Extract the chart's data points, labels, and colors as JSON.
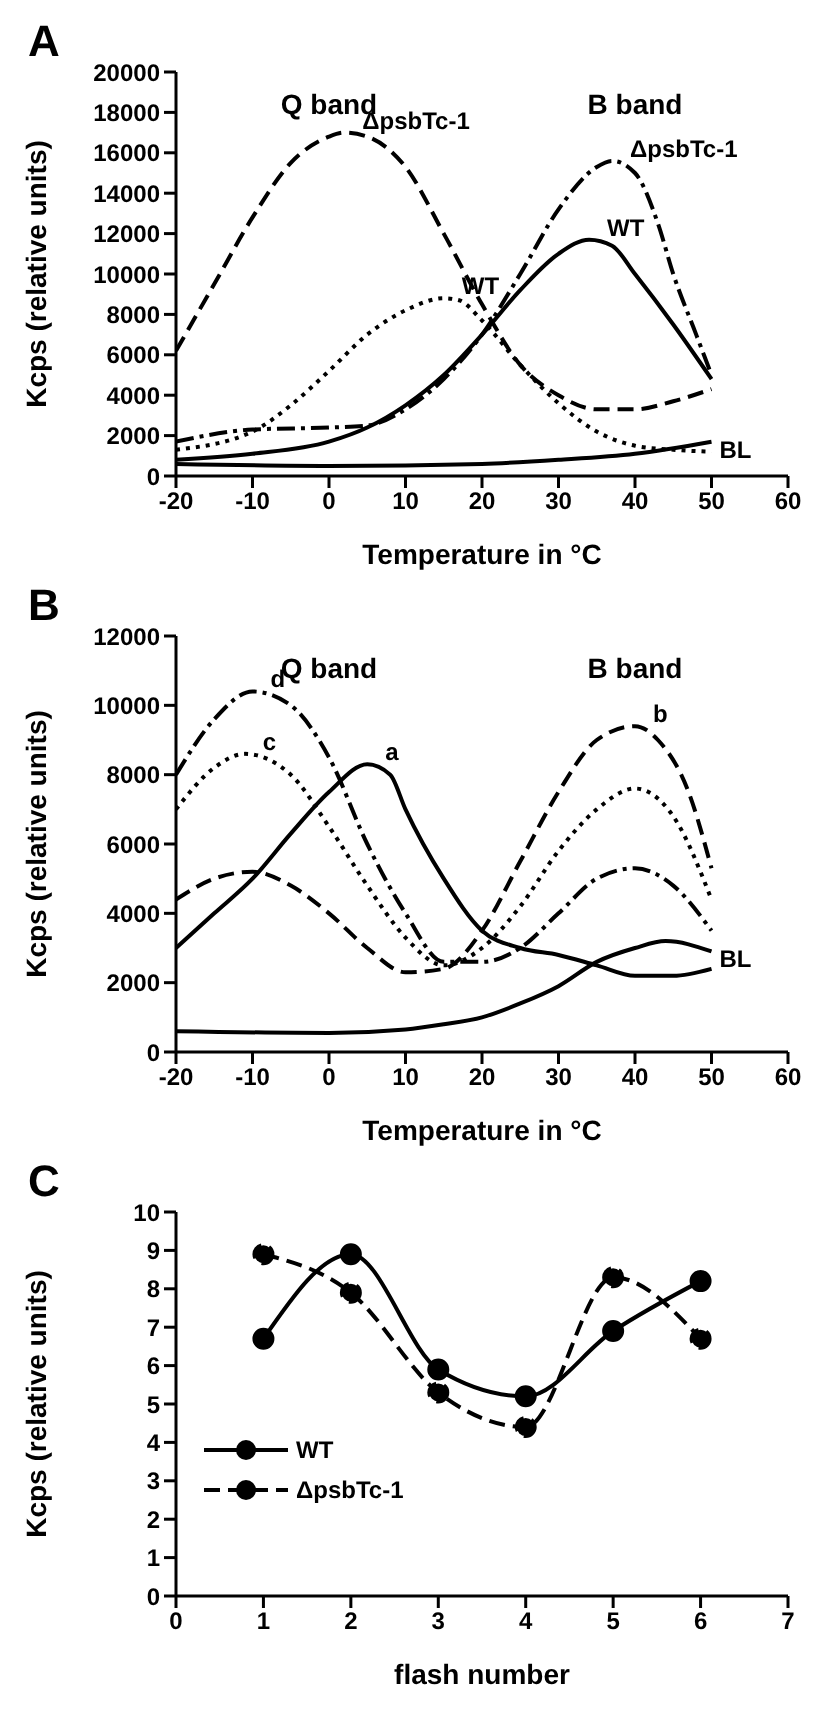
{
  "chart_data": [
    {
      "type": "line",
      "title": "A",
      "xlabel": "Temperature in °C",
      "ylabel": "Kcps (relative units)",
      "xlim": [
        -20,
        60
      ],
      "xticks": [
        -20,
        -10,
        0,
        10,
        20,
        30,
        40,
        50,
        60
      ],
      "ylim": [
        0,
        20000
      ],
      "yticks": [
        0,
        2000,
        4000,
        6000,
        8000,
        10000,
        12000,
        14000,
        16000,
        18000,
        20000
      ],
      "grid": false,
      "legend": false,
      "marker": "none",
      "annotations": [
        "Q band",
        "B band"
      ],
      "series": [
        {
          "name": "ΔpsbTc-1",
          "color": "#000000",
          "line_style": "dashed",
          "x": [
            -20,
            -15,
            -10,
            -5,
            0,
            2,
            5,
            10,
            15,
            20,
            25,
            30,
            35,
            40,
            45,
            50
          ],
          "values": [
            6200,
            9500,
            12800,
            15500,
            16800,
            17000,
            16800,
            15300,
            12000,
            8500,
            5500,
            4000,
            3300,
            3300,
            3700,
            4300
          ]
        },
        {
          "name": "ΔpsbTc-1",
          "color": "#000000",
          "line_style": "dashdot",
          "x": [
            -20,
            -10,
            0,
            5,
            10,
            15,
            20,
            25,
            30,
            35,
            37,
            40,
            43,
            45,
            48,
            50
          ],
          "values": [
            1700,
            2300,
            2400,
            2500,
            3300,
            4800,
            7000,
            10000,
            13200,
            15300,
            15600,
            15000,
            12500,
            10000,
            7000,
            5000
          ]
        },
        {
          "name": "WT",
          "color": "#000000",
          "line_style": "dotted",
          "x": [
            -20,
            -10,
            -5,
            0,
            5,
            10,
            15,
            17,
            20,
            25,
            30,
            35,
            40,
            45,
            50
          ],
          "values": [
            1300,
            2200,
            3500,
            5200,
            7000,
            8200,
            8800,
            8700,
            7700,
            5500,
            3600,
            2200,
            1500,
            1300,
            1200
          ]
        },
        {
          "name": "WT",
          "color": "#000000",
          "line_style": "solid",
          "x": [
            -20,
            -10,
            0,
            5,
            10,
            15,
            20,
            25,
            30,
            34,
            37,
            40,
            45,
            50
          ],
          "values": [
            800,
            1100,
            1700,
            2400,
            3500,
            5000,
            7000,
            9200,
            11000,
            11700,
            11400,
            10000,
            7500,
            4800
          ]
        },
        {
          "name": "BL",
          "color": "#000000",
          "line_style": "solid",
          "x": [
            -20,
            0,
            20,
            30,
            40,
            50
          ],
          "values": [
            600,
            500,
            600,
            800,
            1100,
            1700
          ]
        }
      ]
    },
    {
      "type": "line",
      "title": "B",
      "xlabel": "Temperature in °C",
      "ylabel": "Kcps (relative units)",
      "xlim": [
        -20,
        60
      ],
      "xticks": [
        -20,
        -10,
        0,
        10,
        20,
        30,
        40,
        50,
        60
      ],
      "ylim": [
        0,
        12000
      ],
      "yticks": [
        0,
        2000,
        4000,
        6000,
        8000,
        10000,
        12000
      ],
      "grid": false,
      "legend": false,
      "marker": "none",
      "annotations": [
        "Q band",
        "B band"
      ],
      "series": [
        {
          "name": "a",
          "color": "#000000",
          "line_style": "solid",
          "x": [
            -20,
            -15,
            -10,
            -5,
            0,
            5,
            8,
            10,
            15,
            20,
            25,
            30,
            35,
            40,
            45,
            50
          ],
          "values": [
            3000,
            4000,
            5000,
            6300,
            7500,
            8300,
            8000,
            7000,
            5000,
            3500,
            3000,
            2800,
            2500,
            2200,
            2200,
            2400
          ]
        },
        {
          "name": "b",
          "color": "#000000",
          "line_style": "dashed",
          "x": [
            -20,
            -15,
            -10,
            -5,
            0,
            5,
            10,
            15,
            20,
            25,
            30,
            35,
            40,
            43,
            47,
            50
          ],
          "values": [
            4400,
            5000,
            5200,
            4800,
            4000,
            3000,
            2300,
            2400,
            3500,
            5500,
            7500,
            9000,
            9400,
            9000,
            7500,
            5300
          ]
        },
        {
          "name": "c",
          "color": "#000000",
          "line_style": "dotted",
          "x": [
            -20,
            -15,
            -11,
            -5,
            0,
            5,
            10,
            15,
            20,
            25,
            30,
            35,
            40,
            45,
            50
          ],
          "values": [
            7000,
            8200,
            8600,
            8000,
            6500,
            4800,
            3300,
            2500,
            3000,
            4200,
            5800,
            7000,
            7600,
            6800,
            4400
          ]
        },
        {
          "name": "d",
          "color": "#000000",
          "line_style": "dashdot",
          "x": [
            -20,
            -15,
            -10,
            -5,
            0,
            5,
            10,
            15,
            20,
            25,
            30,
            35,
            40,
            45,
            50
          ],
          "values": [
            8000,
            9600,
            10400,
            10000,
            8500,
            6000,
            4000,
            2600,
            2600,
            3000,
            4000,
            5000,
            5300,
            4800,
            3500
          ]
        },
        {
          "name": "BL",
          "color": "#000000",
          "line_style": "solid",
          "x": [
            -20,
            0,
            10,
            15,
            20,
            25,
            30,
            35,
            40,
            44,
            50
          ],
          "values": [
            600,
            550,
            650,
            800,
            1000,
            1400,
            1900,
            2600,
            3000,
            3200,
            2900
          ]
        }
      ]
    },
    {
      "type": "line",
      "title": "C",
      "xlabel": "flash number",
      "ylabel": "Kcps (relative units)",
      "xlim": [
        0,
        7
      ],
      "xticks": [
        0,
        1,
        2,
        3,
        4,
        5,
        6,
        7
      ],
      "ylim": [
        0,
        10
      ],
      "yticks": [
        0,
        1,
        2,
        3,
        4,
        5,
        6,
        7,
        8,
        9,
        10
      ],
      "grid": false,
      "legend": "bottom left",
      "marker": "circle",
      "series": [
        {
          "name": "WT",
          "color": "#000000",
          "line_style": "solid",
          "x": [
            1,
            2,
            3,
            4,
            5,
            6
          ],
          "values": [
            6.7,
            8.9,
            5.9,
            5.2,
            6.9,
            8.2
          ]
        },
        {
          "name": "ΔpsbTc-1",
          "color": "#000000",
          "line_style": "dashed",
          "x": [
            1,
            2,
            3,
            4,
            5,
            6
          ],
          "values": [
            8.9,
            7.9,
            5.3,
            4.4,
            8.3,
            6.7
          ]
        }
      ]
    }
  ]
}
